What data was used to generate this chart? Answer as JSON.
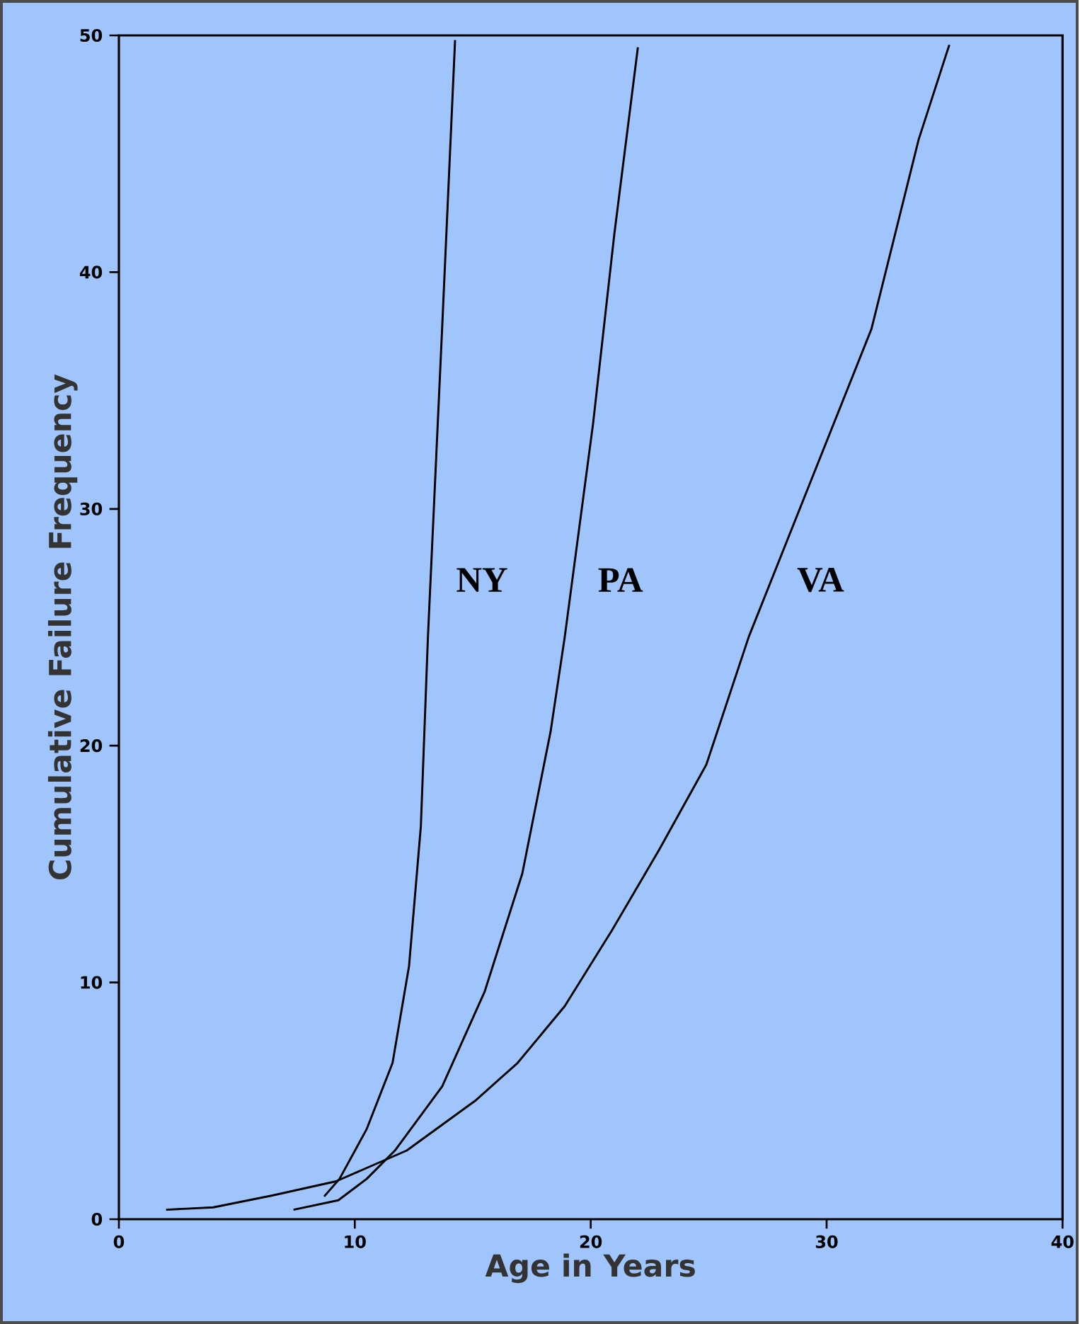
{
  "chart_data": {
    "type": "line",
    "xlabel": "Age in Years",
    "ylabel": "Cumulative Failure Frequency",
    "xlim": [
      0,
      40
    ],
    "ylim": [
      0,
      50
    ],
    "xticks": [
      0,
      10,
      20,
      30,
      40
    ],
    "yticks": [
      0,
      10,
      20,
      30,
      40,
      50
    ],
    "grid": false,
    "legend": false,
    "marker": "none",
    "line_style": "solid",
    "series": [
      {
        "name": "NY",
        "color": "#000000",
        "x": [
          8.7,
          9.35,
          10.5,
          11.6,
          12.3,
          12.8,
          13.1,
          13.7,
          14.25
        ],
        "values": [
          0.96,
          1.7,
          3.8,
          6.6,
          10.7,
          16.6,
          24.6,
          37.6,
          49.8
        ]
      },
      {
        "name": "PA",
        "color": "#000000",
        "x": [
          7.4,
          9.3,
          10.5,
          11.7,
          13.7,
          15.5,
          17.1,
          18.3,
          18.9,
          20.1,
          21.0,
          22.0
        ],
        "values": [
          0.4,
          0.8,
          1.7,
          2.9,
          5.6,
          9.6,
          14.6,
          20.6,
          24.6,
          33.6,
          41.6,
          49.5
        ]
      },
      {
        "name": "VA",
        "color": "#000000",
        "x": [
          2.0,
          4.0,
          6.5,
          9.2,
          12.2,
          15.1,
          16.9,
          18.9,
          20.9,
          22.9,
          24.9,
          26.7,
          29.5,
          31.9,
          33.9,
          35.2
        ],
        "values": [
          0.4,
          0.5,
          1.0,
          1.6,
          2.9,
          5.0,
          6.6,
          9.0,
          12.2,
          15.6,
          19.2,
          24.6,
          31.6,
          37.6,
          45.6,
          49.6
        ]
      }
    ]
  }
}
